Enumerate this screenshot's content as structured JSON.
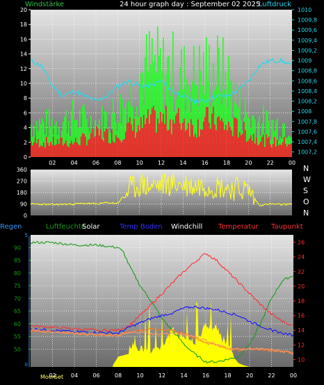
{
  "colors": {
    "background": "#000000",
    "panel_top": "#e4e4e4",
    "panel_bottom": "#6a6a6a",
    "grid": "#ffffff",
    "wind_max": "#22ff22",
    "wind_mean": "#ff2020",
    "pressure": "#29d8ee",
    "wind_dir": "#ffff22",
    "regen": "#3399ff",
    "luftfeuchte": "#1b9a1b",
    "solar": "#ffff00",
    "temp_boden": "#1515ff",
    "windchill": "#ffffff",
    "temperatur": "#ff3030",
    "taupunkt": "#ff7722",
    "tick_left": "#ffffff",
    "tick_right_pressure": "#29d8ee",
    "tick_right_temp": "#ff3030",
    "tick_left_humidity": "#1b9a1b"
  },
  "header": {
    "left_label": "Windstärke",
    "title": "24 hour graph day : September 02 2025",
    "right_label": "Luftdruck"
  },
  "legend": [
    {
      "label": "Regen",
      "color": "#3399ff"
    },
    {
      "label": "Luftfeuchte",
      "color": "#1b9a1b"
    },
    {
      "label": "Solar",
      "color": "#ffffff"
    },
    {
      "label": "Temp Boden",
      "color": "#3333ff"
    },
    {
      "label": "Windchill",
      "color": "#ffffff"
    },
    {
      "label": "Temperatur",
      "color": "#ff3030"
    },
    {
      "label": "Taupunkt",
      "color": "#ff3030"
    }
  ],
  "direction_labels": [
    "N",
    "W",
    "S",
    "O",
    "N"
  ],
  "moon_labels": [
    "Moon",
    "Set"
  ],
  "chart_data": [
    {
      "type": "line",
      "x_ticks": [
        "02",
        "04",
        "06",
        "08",
        "10",
        "12",
        "14",
        "16",
        "18",
        "20",
        "22",
        "00"
      ],
      "ylim": [
        0,
        20
      ],
      "y_ticks": [
        "0",
        "2",
        "4",
        "6",
        "8",
        "10",
        "12",
        "14",
        "16",
        "18",
        "20"
      ],
      "y2lim": [
        1007.1,
        1010
      ],
      "y2_ticks": [
        "1007,2",
        "1007,4",
        "1007,6",
        "1007,8",
        "1008",
        "1008,2",
        "1008,4",
        "1008,6",
        "1008,8",
        "1009",
        "1009,2",
        "1009,4",
        "1009,6",
        "1009,8",
        "1010"
      ],
      "series": [
        {
          "name": "Windstärke",
          "hours": [
            0,
            2,
            4,
            6,
            8,
            9,
            10,
            11,
            12,
            13,
            14,
            15,
            16,
            17,
            18,
            19,
            20,
            22,
            24
          ],
          "max": [
            5,
            5,
            6,
            5,
            7,
            9,
            12,
            14,
            13,
            13,
            12,
            12,
            13,
            13,
            12,
            8,
            6,
            5,
            5
          ],
          "mean": [
            2,
            2,
            2,
            3,
            3,
            4,
            4,
            5,
            5,
            5,
            5,
            4,
            5,
            5,
            4,
            4,
            3,
            2,
            2
          ]
        },
        {
          "name": "Luftdruck",
          "hours": [
            0,
            1,
            2,
            3,
            4,
            5,
            6,
            7,
            8,
            9,
            10,
            11,
            12,
            13,
            14,
            15,
            16,
            17,
            18,
            19,
            20,
            21,
            22,
            23,
            24
          ],
          "values": [
            1009,
            1008.9,
            1008.5,
            1008.3,
            1008.4,
            1008.3,
            1008.2,
            1008.3,
            1008.5,
            1008.6,
            1008.5,
            1008.5,
            1008.6,
            1008.4,
            1008.3,
            1008.2,
            1008.2,
            1008.3,
            1008.3,
            1008.4,
            1008.6,
            1008.9,
            1009,
            1009,
            1008.9
          ]
        }
      ]
    },
    {
      "type": "scatter",
      "x_ticks": [],
      "ylim": [
        0,
        360
      ],
      "y_ticks": [
        "0",
        "90",
        "180",
        "270",
        "360"
      ],
      "series": [
        {
          "name": "Windrichtung",
          "hours": [
            0,
            2,
            4,
            5,
            6,
            7,
            8,
            9,
            10,
            11,
            12,
            13,
            14,
            15,
            16,
            17,
            18,
            19,
            20,
            21,
            22,
            23,
            24
          ],
          "values": [
            90,
            85,
            90,
            95,
            90,
            100,
            95,
            200,
            240,
            230,
            240,
            250,
            240,
            230,
            240,
            230,
            220,
            210,
            200,
            80,
            90,
            85,
            90
          ]
        }
      ]
    },
    {
      "type": "line",
      "x_ticks": [
        "02",
        "04",
        "06",
        "08",
        "10",
        "12",
        "14",
        "16",
        "18",
        "20",
        "22",
        "00"
      ],
      "ylim": [
        43,
        95
      ],
      "y_ticks": [
        "50",
        "55",
        "60",
        "65",
        "70",
        "75",
        "80",
        "85",
        "90"
      ],
      "y2lim": [
        9,
        27
      ],
      "y2_ticks": [
        "10",
        "12",
        "14",
        "16",
        "18",
        "20",
        "22",
        "24",
        "26"
      ],
      "regen_ticks": [
        "0",
        "5"
      ],
      "series": [
        {
          "name": "Luftfeuchte",
          "axis": "left",
          "hours": [
            0,
            2,
            4,
            6,
            8,
            8.5,
            9,
            10,
            11,
            12,
            13,
            14,
            15,
            16,
            17,
            18,
            19,
            20,
            21,
            22,
            23,
            24
          ],
          "values": [
            92,
            92,
            91,
            91,
            90,
            88,
            83,
            75,
            69,
            62,
            57,
            52,
            48,
            45,
            45,
            46,
            47,
            52,
            60,
            70,
            77,
            79
          ]
        },
        {
          "name": "Temperatur",
          "axis": "right",
          "hours": [
            0,
            2,
            4,
            6,
            8,
            9,
            10,
            11,
            12,
            13,
            14,
            15,
            16,
            17,
            18,
            19,
            20,
            21,
            22,
            23,
            24
          ],
          "values": [
            14.6,
            14.4,
            14.2,
            14.0,
            14.0,
            14.6,
            16.0,
            17.5,
            19.0,
            20.5,
            22.0,
            23.3,
            24.5,
            23.5,
            22.0,
            20.5,
            19.0,
            17.5,
            16.2,
            15.2,
            14.6
          ]
        },
        {
          "name": "Temp Boden",
          "axis": "right",
          "hours": [
            0,
            2,
            4,
            6,
            8,
            9,
            10,
            11,
            12,
            13,
            14,
            15,
            16,
            17,
            18,
            19,
            20,
            21,
            22,
            23,
            24
          ],
          "values": [
            14.2,
            14.0,
            13.8,
            13.7,
            13.6,
            14.4,
            15.0,
            15.6,
            16.0,
            16.4,
            17.0,
            17.2,
            17.0,
            16.8,
            16.4,
            16.0,
            15.2,
            14.6,
            14.0,
            13.6,
            13.3
          ]
        },
        {
          "name": "Taupunkt",
          "axis": "right",
          "hours": [
            0,
            2,
            4,
            6,
            8,
            9,
            10,
            11,
            12,
            13,
            14,
            15,
            16,
            17,
            18,
            19,
            20,
            21,
            22,
            23,
            24
          ],
          "values": [
            14.0,
            13.8,
            13.6,
            13.4,
            13.3,
            13.8,
            14.0,
            14.2,
            14.1,
            14.0,
            13.5,
            13.0,
            12.3,
            12.0,
            11.5,
            11.3,
            11.5,
            11.4,
            11.3,
            11.1,
            10.9
          ]
        },
        {
          "name": "Windchill",
          "axis": "right",
          "hours": [
            0,
            2,
            4,
            6,
            8,
            9,
            10,
            11,
            12,
            13,
            14,
            15,
            16,
            17,
            18,
            19,
            20,
            21,
            22,
            23,
            24
          ],
          "values": [
            14.0,
            13.8,
            13.6,
            13.4,
            13.3,
            13.6,
            13.8,
            13.5,
            13.5,
            13.6,
            13.4,
            13.2,
            12.6,
            12.0,
            11.6,
            11.4,
            11.5,
            11.4,
            11.3,
            11.1,
            10.9
          ]
        },
        {
          "name": "Solar",
          "axis": "right",
          "hours": [
            7.5,
            8,
            9,
            10,
            11,
            12,
            13,
            14,
            15,
            16,
            17,
            18,
            18.5,
            19,
            19.5,
            20
          ],
          "values": [
            9.2,
            10.4,
            10.8,
            10.9,
            10.7,
            11.2,
            13.5,
            12.4,
            11.8,
            14.0,
            13.6,
            11.0,
            10.4,
            9.5,
            9.2,
            9.0
          ]
        }
      ]
    }
  ]
}
